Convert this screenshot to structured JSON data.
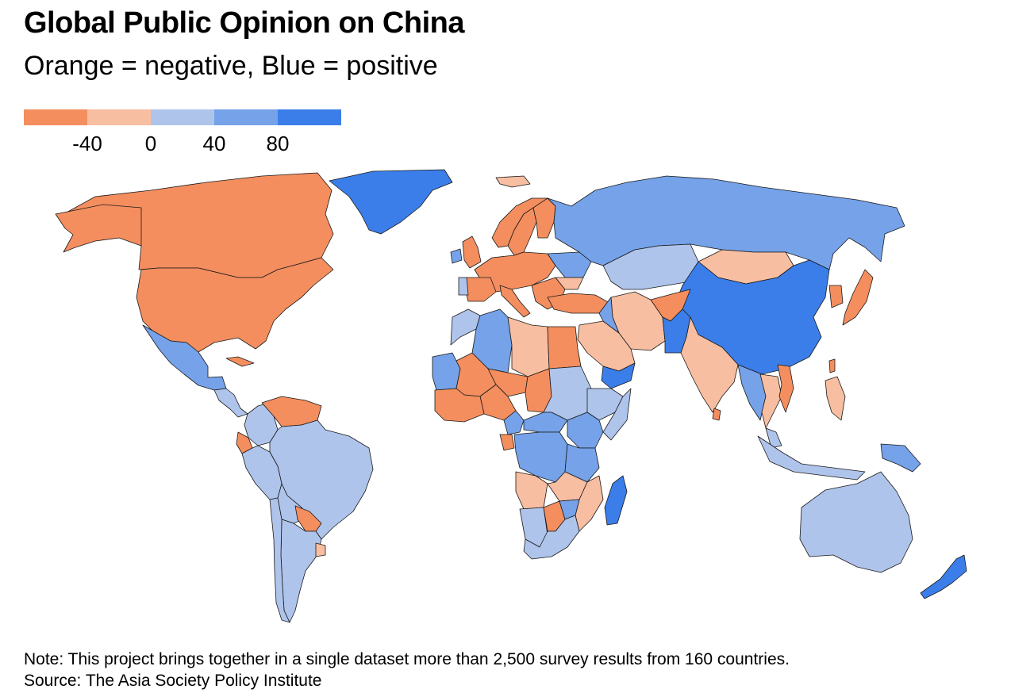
{
  "header": {
    "title": "Global Public Opinion on China",
    "subtitle": "Orange = negative, Blue = positive"
  },
  "legend": {
    "colors": [
      "#f48e5f",
      "#f8bea1",
      "#afc4eb",
      "#75a2e8",
      "#3b7ee9"
    ],
    "ticks": [
      "-40",
      "0",
      "40",
      "80"
    ]
  },
  "map": {
    "ocean_color": "#ffffff",
    "border_color": "#1a1a1a",
    "regions": [
      {
        "name": "Canada",
        "shade": 0
      },
      {
        "name": "United States",
        "shade": 0
      },
      {
        "name": "Alaska",
        "shade": 0
      },
      {
        "name": "Greenland",
        "shade": 4
      },
      {
        "name": "Mexico",
        "shade": 3
      },
      {
        "name": "Cuba",
        "shade": 0
      },
      {
        "name": "Central America",
        "shade": 2
      },
      {
        "name": "Colombia",
        "shade": 2
      },
      {
        "name": "Venezuela",
        "shade": 0
      },
      {
        "name": "Ecuador",
        "shade": 0
      },
      {
        "name": "Brazil",
        "shade": 2
      },
      {
        "name": "Peru",
        "shade": 2
      },
      {
        "name": "Bolivia",
        "shade": 2
      },
      {
        "name": "Paraguay",
        "shade": 0
      },
      {
        "name": "Argentina",
        "shade": 2
      },
      {
        "name": "Chile",
        "shade": 2
      },
      {
        "name": "Uruguay",
        "shade": 1
      },
      {
        "name": "Iceland",
        "shade": 1
      },
      {
        "name": "Norway",
        "shade": 0
      },
      {
        "name": "Sweden",
        "shade": 0
      },
      {
        "name": "Finland",
        "shade": 0
      },
      {
        "name": "United Kingdom",
        "shade": 0
      },
      {
        "name": "Ireland",
        "shade": 3
      },
      {
        "name": "Western Europe",
        "shade": 0
      },
      {
        "name": "Spain",
        "shade": 0
      },
      {
        "name": "Portugal",
        "shade": 2
      },
      {
        "name": "Italy",
        "shade": 0
      },
      {
        "name": "Balkans",
        "shade": 0
      },
      {
        "name": "Ukraine",
        "shade": 3
      },
      {
        "name": "Romania",
        "shade": 1
      },
      {
        "name": "Turkey",
        "shade": 0
      },
      {
        "name": "Russia",
        "shade": 3
      },
      {
        "name": "Kazakhstan",
        "shade": 2
      },
      {
        "name": "Mongolia",
        "shade": 1
      },
      {
        "name": "China",
        "shade": 4
      },
      {
        "name": "Korea",
        "shade": 0
      },
      {
        "name": "Japan",
        "shade": 0
      },
      {
        "name": "Taiwan",
        "shade": 0
      },
      {
        "name": "Iran",
        "shade": 1
      },
      {
        "name": "Afghanistan",
        "shade": 0
      },
      {
        "name": "Pakistan",
        "shade": 4
      },
      {
        "name": "India",
        "shade": 1
      },
      {
        "name": "Sri Lanka",
        "shade": 0
      },
      {
        "name": "Saudi Arabia",
        "shade": 1
      },
      {
        "name": "Iraq",
        "shade": 3
      },
      {
        "name": "Yemen",
        "shade": 4
      },
      {
        "name": "Myanmar",
        "shade": 3
      },
      {
        "name": "Thailand",
        "shade": 1
      },
      {
        "name": "Vietnam",
        "shade": 0
      },
      {
        "name": "Philippines",
        "shade": 1
      },
      {
        "name": "Malaysia",
        "shade": 2
      },
      {
        "name": "Indonesia",
        "shade": 2
      },
      {
        "name": "Papua New Guinea",
        "shade": 3
      },
      {
        "name": "Australia",
        "shade": 2
      },
      {
        "name": "New Zealand",
        "shade": 4
      },
      {
        "name": "Morocco",
        "shade": 2
      },
      {
        "name": "Algeria",
        "shade": 3
      },
      {
        "name": "Libya",
        "shade": 1
      },
      {
        "name": "Egypt",
        "shade": 0
      },
      {
        "name": "Mauritania",
        "shade": 3
      },
      {
        "name": "Mali",
        "shade": 0
      },
      {
        "name": "Niger",
        "shade": 0
      },
      {
        "name": "Chad",
        "shade": 0
      },
      {
        "name": "Sudan",
        "shade": 2
      },
      {
        "name": "Nigeria",
        "shade": 0
      },
      {
        "name": "West Africa",
        "shade": 0
      },
      {
        "name": "Ethiopia",
        "shade": 2
      },
      {
        "name": "Somalia",
        "shade": 2
      },
      {
        "name": "Cameroon",
        "shade": 3
      },
      {
        "name": "Central African Rep.",
        "shade": 3
      },
      {
        "name": "Gabon",
        "shade": 0
      },
      {
        "name": "DR Congo",
        "shade": 3
      },
      {
        "name": "Kenya",
        "shade": 3
      },
      {
        "name": "Tanzania",
        "shade": 3
      },
      {
        "name": "Angola",
        "shade": 1
      },
      {
        "name": "Zambia",
        "shade": 1
      },
      {
        "name": "Mozambique",
        "shade": 1
      },
      {
        "name": "Namibia",
        "shade": 2
      },
      {
        "name": "Botswana",
        "shade": 0
      },
      {
        "name": "Zimbabwe",
        "shade": 3
      },
      {
        "name": "South Africa",
        "shade": 2
      },
      {
        "name": "Madagascar",
        "shade": 4
      }
    ]
  },
  "footer": {
    "note": "Note: This project brings together in a single dataset more than 2,500 survey results from 160 countries.",
    "source": "Source: The Asia Society Policy Institute"
  }
}
